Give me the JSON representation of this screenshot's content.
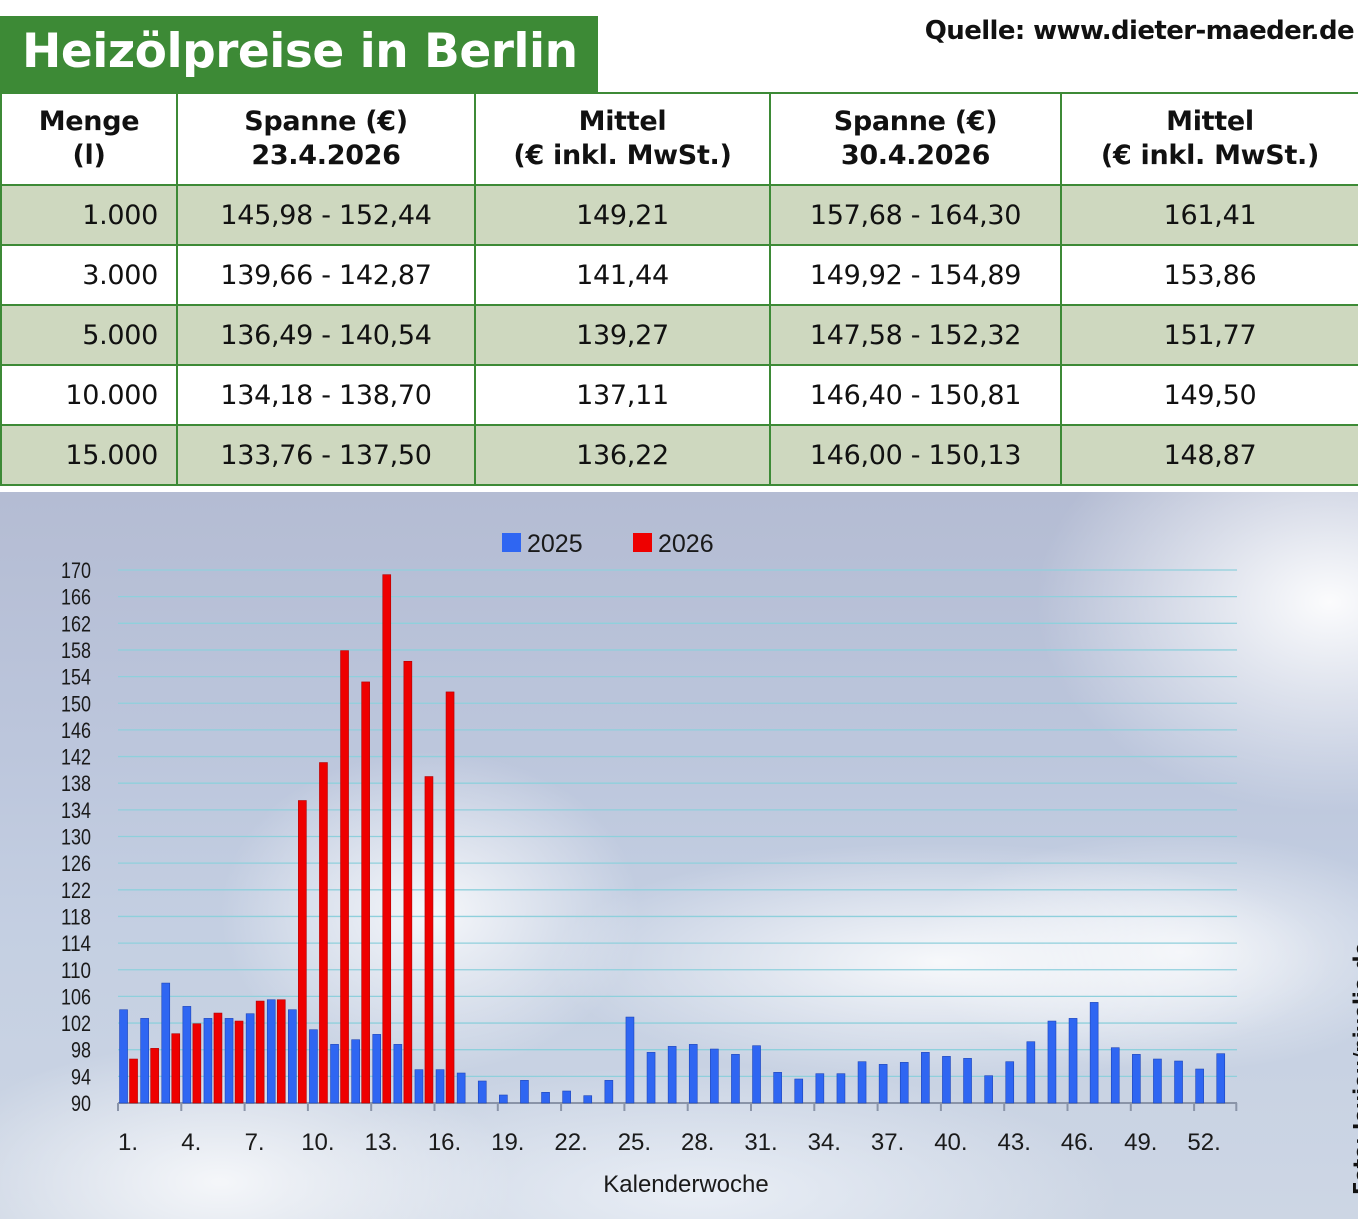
{
  "header": {
    "title": "Heizölpreise in Berlin",
    "source": "Quelle: www.dieter-maeder.de"
  },
  "table": {
    "headers": [
      [
        "Menge",
        "(l)"
      ],
      [
        "Spanne (€)",
        "23.4.2026"
      ],
      [
        "Mittel",
        "(€ inkl. MwSt.)"
      ],
      [
        "Spanne (€)",
        "30.4.2026"
      ],
      [
        "Mittel",
        "(€ inkl. MwSt.)"
      ]
    ],
    "rows": [
      [
        "1.000",
        "145,98 - 152,44",
        "149,21",
        "157,68 - 164,30",
        "161,41"
      ],
      [
        "3.000",
        "139,66 - 142,87",
        "141,44",
        "149,92 - 154,89",
        "153,86"
      ],
      [
        "5.000",
        "136,49 - 140,54",
        "139,27",
        "147,58 - 152,32",
        "151,77"
      ],
      [
        "10.000",
        "134,18 - 138,70",
        "137,11",
        "146,40 - 150,81",
        "149,50"
      ],
      [
        "15.000",
        "133,76 - 137,50",
        "136,22",
        "146,00 - 150,13",
        "148,87"
      ]
    ]
  },
  "chart_data": {
    "type": "bar",
    "xlabel": "Kalenderwoche",
    "ylabel": "",
    "ylim": [
      90,
      170
    ],
    "y_ticks": [
      90,
      94,
      98,
      102,
      106,
      110,
      114,
      118,
      122,
      126,
      130,
      134,
      138,
      142,
      146,
      150,
      154,
      158,
      162,
      166,
      170
    ],
    "x_tick_labels": [
      "1.",
      "4.",
      "7.",
      "10.",
      "13.",
      "16.",
      "19.",
      "22.",
      "25.",
      "28.",
      "31.",
      "34.",
      "37.",
      "40.",
      "43.",
      "46.",
      "49.",
      "52."
    ],
    "x_tick_weeks": [
      1,
      4,
      7,
      10,
      13,
      16,
      19,
      22,
      25,
      28,
      31,
      34,
      37,
      40,
      43,
      46,
      49,
      52
    ],
    "legend_position": "top-center",
    "grid": true,
    "weeks": [
      1,
      2,
      3,
      4,
      5,
      6,
      7,
      8,
      9,
      10,
      11,
      12,
      13,
      14,
      15,
      16,
      17,
      18,
      19,
      20,
      21,
      22,
      23,
      24,
      25,
      26,
      27,
      28,
      29,
      30,
      31,
      32,
      33,
      34,
      35,
      36,
      37,
      38,
      39,
      40,
      41,
      42,
      43,
      44,
      45,
      46,
      47,
      48,
      49,
      50,
      51,
      52,
      53
    ],
    "series": [
      {
        "name": "2025",
        "color": "#2f66f2",
        "values": [
          104,
          102.7,
          108,
          104.5,
          102.7,
          102.7,
          103.4,
          105.5,
          104,
          101,
          98.8,
          99.5,
          100.3,
          98.8,
          95,
          95,
          94.5,
          93.3,
          91.2,
          93.4,
          91.6,
          91.8,
          91.1,
          93.4,
          102.9,
          97.6,
          98.5,
          98.8,
          98.1,
          97.3,
          98.6,
          94.6,
          93.6,
          94.4,
          94.4,
          96.2,
          95.8,
          96.1,
          97.6,
          97,
          96.7,
          94.1,
          96.2,
          99.2,
          102.3,
          102.7,
          105.1,
          98.3,
          97.3,
          96.6,
          96.3,
          95.1,
          97.4
        ]
      },
      {
        "name": "2026",
        "color": "#ee0000",
        "values": [
          96.6,
          98.2,
          100.4,
          101.9,
          103.5,
          102.3,
          105.3,
          105.5,
          135.4,
          141.1,
          157.9,
          153.2,
          169.3,
          156.3,
          139,
          151.7
        ]
      }
    ]
  },
  "credit": "Foto: Joujou/pixelio.de"
}
